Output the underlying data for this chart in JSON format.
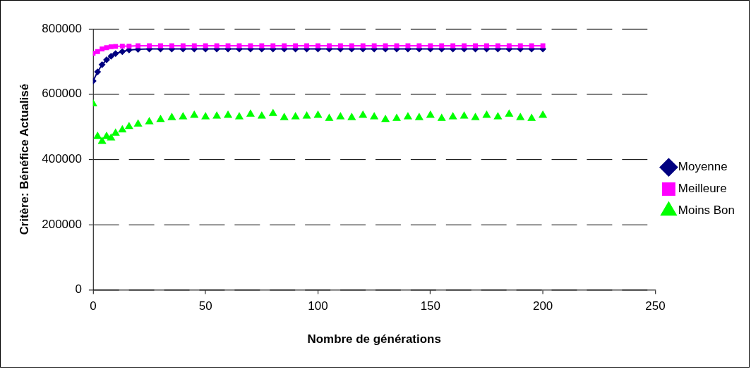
{
  "chart_data": {
    "type": "line",
    "xlabel": "Nombre de générations",
    "ylabel": "Critère: Bénéfice Actualisé",
    "x": [
      0,
      2,
      4,
      6,
      8,
      10,
      13,
      16,
      20,
      25,
      30,
      35,
      40,
      45,
      50,
      55,
      60,
      65,
      70,
      75,
      80,
      85,
      90,
      95,
      100,
      105,
      110,
      115,
      120,
      125,
      130,
      135,
      140,
      145,
      150,
      155,
      160,
      165,
      170,
      175,
      180,
      185,
      190,
      195,
      200
    ],
    "series": [
      {
        "name": "Moyenne",
        "color": "#000080",
        "marker": "diamond",
        "values": [
          640000,
          668000,
          690000,
          705000,
          716000,
          724000,
          730000,
          735000,
          737000,
          738000,
          738000,
          738000,
          738000,
          738000,
          738000,
          738000,
          738000,
          738000,
          738000,
          738000,
          738000,
          738000,
          738000,
          738000,
          738000,
          738000,
          738000,
          738000,
          738000,
          738000,
          738000,
          738000,
          738000,
          738000,
          738000,
          738000,
          738000,
          738000,
          738000,
          738000,
          738000,
          738000,
          738000,
          738000,
          738000
        ]
      },
      {
        "name": "Meilleure",
        "color": "#ff00ff",
        "marker": "square",
        "values": [
          725000,
          730000,
          738000,
          742000,
          745000,
          746000,
          747000,
          747000,
          748000,
          748000,
          748000,
          748000,
          748000,
          748000,
          748000,
          748000,
          748000,
          748000,
          748000,
          748000,
          748000,
          748000,
          748000,
          748000,
          748000,
          748000,
          748000,
          748000,
          748000,
          748000,
          748000,
          748000,
          748000,
          748000,
          748000,
          748000,
          748000,
          748000,
          748000,
          748000,
          748000,
          748000,
          748000,
          748000,
          748000
        ]
      },
      {
        "name": "Moins Bon",
        "type": "scatter",
        "color": "#00ff00",
        "marker": "triangle",
        "values": [
          570000,
          470000,
          455000,
          470000,
          465000,
          480000,
          490000,
          500000,
          508000,
          515000,
          522000,
          528000,
          530000,
          535000,
          530000,
          532000,
          535000,
          530000,
          538000,
          532000,
          540000,
          528000,
          530000,
          532000,
          535000,
          525000,
          530000,
          528000,
          535000,
          530000,
          522000,
          525000,
          530000,
          528000,
          535000,
          525000,
          530000,
          532000,
          528000,
          535000,
          530000,
          538000,
          528000,
          525000,
          535000
        ]
      }
    ],
    "xlim": [
      0,
      250
    ],
    "xticks": [
      0,
      50,
      100,
      150,
      200,
      250
    ],
    "ylim": [
      0,
      800000
    ],
    "yticks": [
      0,
      200000,
      400000,
      600000,
      800000
    ],
    "grid": "y",
    "legend": "right"
  }
}
